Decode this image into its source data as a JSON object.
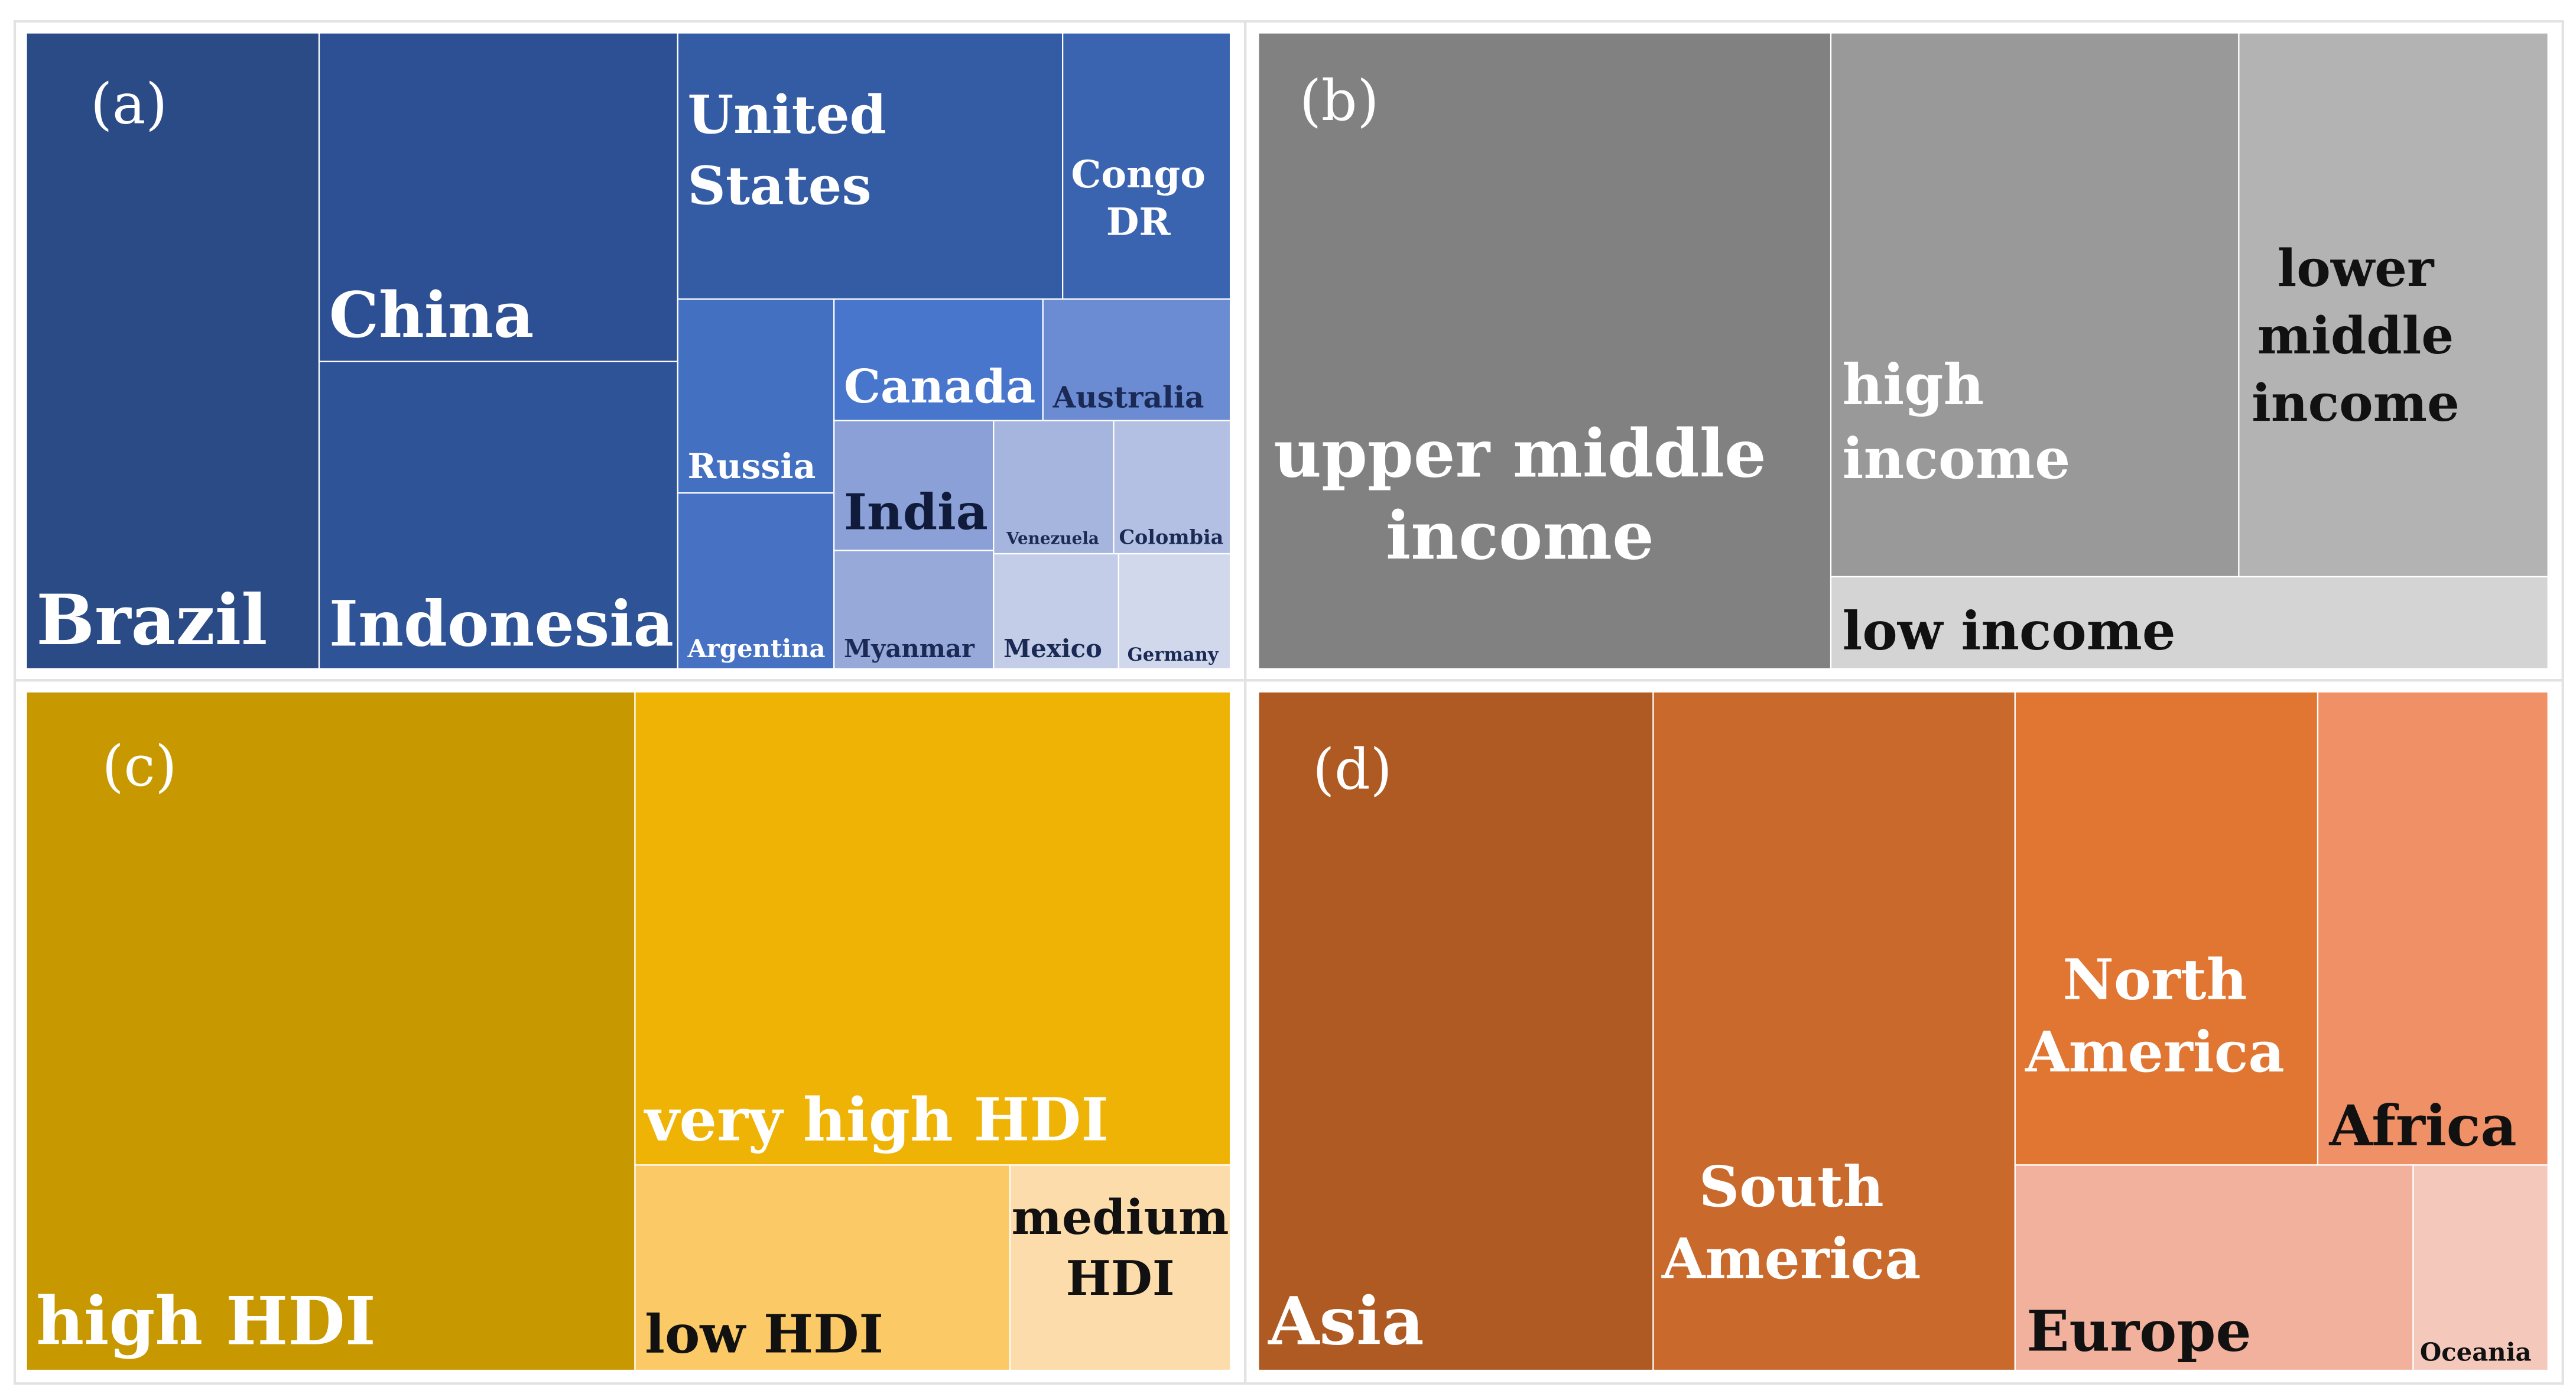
{
  "chart_data": [
    {
      "type": "treemap",
      "panel_label": "(a)",
      "legend": "none",
      "colors": {
        "base": "#294a86",
        "light": "#d4d9ec"
      },
      "values": [
        {
          "label": "Brazil",
          "value": 22.2,
          "color": "#2a4b85",
          "text_color": "#ffffff"
        },
        {
          "label": "China",
          "value": 14.4,
          "color": "#2d5095",
          "text_color": "#ffffff"
        },
        {
          "label": "Indonesia",
          "value": 12.5,
          "color": "#2e5396",
          "text_color": "#ffffff"
        },
        {
          "label": "United States",
          "value": 10.6,
          "color": "#345ca5",
          "text_color": "#ffffff"
        },
        {
          "label": "Congo DR",
          "value": 5.5,
          "color": "#3a63b0",
          "text_color": "#ffffff"
        },
        {
          "label": "Russia",
          "value": 4.3,
          "color": "#4470c2",
          "text_color": "#ffffff"
        },
        {
          "label": "Argentina",
          "value": 4.2,
          "color": "#4772c4",
          "text_color": "#ffffff"
        },
        {
          "label": "Canada",
          "value": 4.3,
          "color": "#4876cd",
          "text_color": "#ffffff"
        },
        {
          "label": "Australia",
          "value": 2.8,
          "color": "#6b8bd2",
          "text_color": "#1a2a55"
        },
        {
          "label": "India",
          "value": 3.1,
          "color": "#8aa0d6",
          "text_color": "#101a3a"
        },
        {
          "label": "Myanmar",
          "value": 2.3,
          "color": "#97a9d9",
          "text_color": "#1a2a55"
        },
        {
          "label": "Venezuela",
          "value": 2.0,
          "color": "#a6b5de",
          "text_color": "#1a2a55"
        },
        {
          "label": "Colombia",
          "value": 1.9,
          "color": "#b3c0e3",
          "text_color": "#1a2a55"
        },
        {
          "label": "Mexico",
          "value": 1.9,
          "color": "#c3cde8",
          "text_color": "#1a2a55"
        },
        {
          "label": "Germany",
          "value": 1.7,
          "color": "#d2d8ec",
          "text_color": "#1a2a55"
        }
      ]
    },
    {
      "type": "treemap",
      "panel_label": "(b)",
      "legend": "none",
      "values": [
        {
          "label": "upper middle income",
          "lines": [
            "upper middle",
            "income"
          ],
          "value": 39.8,
          "color": "#818181",
          "text_color": "#ffffff"
        },
        {
          "label": "high income",
          "lines": [
            "high",
            "income"
          ],
          "value": 25.7,
          "color": "#999999",
          "text_color": "#ffffff"
        },
        {
          "label": "lower middle income",
          "lines": [
            "lower",
            "middle",
            "income"
          ],
          "value": 19.7,
          "color": "#b3b3b3",
          "text_color": "#111111"
        },
        {
          "label": "low income",
          "lines": [
            "low income"
          ],
          "value": 14.8,
          "color": "#d4d4d4",
          "text_color": "#111111"
        }
      ]
    },
    {
      "type": "treemap",
      "panel_label": "(c)",
      "legend": "none",
      "values": [
        {
          "label": "high HDI",
          "lines": [
            "high HDI"
          ],
          "value": 50.7,
          "color": "#c79800",
          "text_color": "#ffffff"
        },
        {
          "label": "very high HDI",
          "lines": [
            "very high HDI"
          ],
          "value": 34.3,
          "color": "#efb305",
          "text_color": "#ffffff"
        },
        {
          "label": "low HDI",
          "lines": [
            "low HDI"
          ],
          "value": 8.6,
          "color": "#fbc965",
          "text_color": "#111111"
        },
        {
          "label": "medium HDI",
          "lines": [
            "medium",
            "HDI"
          ],
          "value": 6.4,
          "color": "#fcdcaa",
          "text_color": "#111111"
        }
      ]
    },
    {
      "type": "treemap",
      "panel_label": "(d)",
      "legend": "none",
      "values": [
        {
          "label": "Asia",
          "lines": [
            "Asia"
          ],
          "value": 33.0,
          "color": "#ae5a22",
          "text_color": "#ffffff"
        },
        {
          "label": "South America",
          "lines": [
            "South",
            "America"
          ],
          "value": 30.0,
          "color": "#c9692b",
          "text_color": "#ffffff"
        },
        {
          "label": "North America",
          "lines": [
            "North",
            "America"
          ],
          "value": 17.4,
          "color": "#e07632",
          "text_color": "#ffffff"
        },
        {
          "label": "Africa",
          "lines": [
            "Africa"
          ],
          "value": 9.9,
          "color": "#ef9066",
          "text_color": "#111111"
        },
        {
          "label": "Europe",
          "lines": [
            "Europe"
          ],
          "value": 7.0,
          "color": "#f1b19c",
          "text_color": "#111111"
        },
        {
          "label": "Oceania",
          "lines": [
            "Oceania"
          ],
          "value": 2.7,
          "color": "#f4c9bb",
          "text_color": "#111111"
        }
      ]
    }
  ]
}
